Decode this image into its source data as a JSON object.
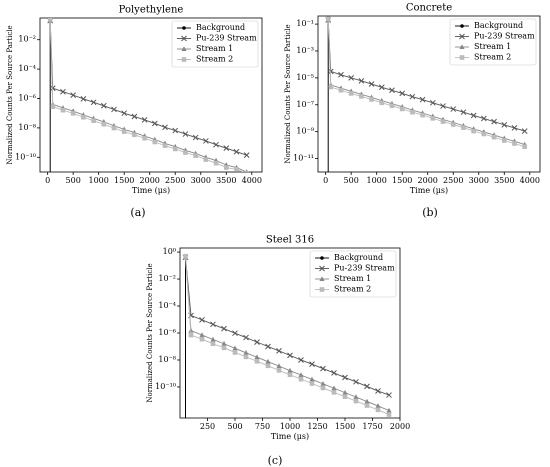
{
  "chart_data": [
    {
      "type": "line",
      "title": "Polyethylene",
      "xlabel": "Time (μs)",
      "ylabel": "Normalized Counts Per Source Particle",
      "log_y": true,
      "legend": "upper right",
      "x": [
        50,
        100,
        300,
        500,
        700,
        900,
        1100,
        1300,
        1500,
        1700,
        1900,
        2100,
        2300,
        2500,
        2700,
        2900,
        3100,
        3300,
        3500,
        3700,
        3900
      ],
      "xlim": [
        -150,
        4200
      ],
      "xticks": [
        0,
        500,
        1000,
        1500,
        2000,
        2500,
        3000,
        3500,
        4000
      ],
      "ylim": [
        1e-11,
        0.3
      ],
      "yticks": [
        {
          "value": 1e-10,
          "label": "10⁻¹⁰"
        },
        {
          "value": 1e-08,
          "label": "10⁻⁸"
        },
        {
          "value": 1e-06,
          "label": "10⁻⁶"
        },
        {
          "value": 0.0001,
          "label": "10⁻⁴"
        },
        {
          "value": 0.01,
          "label": "10⁻²"
        }
      ],
      "series": [
        {
          "name": "Background",
          "color": "#000000",
          "marker": "dot",
          "values": [
            0.2,
            null,
            null,
            null,
            null,
            null,
            null,
            null,
            null,
            null,
            null,
            null,
            null,
            null,
            null,
            null,
            null,
            null,
            null,
            null,
            null
          ]
        },
        {
          "name": "Pu-239 Stream",
          "color": "#555555",
          "marker": "x",
          "values": [
            0.2,
            5e-06,
            2.9e-06,
            1.7e-06,
            9.5e-07,
            5.5e-07,
            3.2e-07,
            1.8e-07,
            1e-07,
            6e-08,
            3.5e-08,
            2e-08,
            1.1e-08,
            6.6e-09,
            3.8e-09,
            2.2e-09,
            1.3e-09,
            7.2e-10,
            4.2e-10,
            2.4e-10,
            1.4e-10
          ]
        },
        {
          "name": "Stream 1",
          "color": "#888888",
          "marker": "triangle",
          "values": [
            0.2,
            4e-07,
            2.3e-07,
            1.4e-07,
            7.6e-08,
            4.4e-08,
            2.6e-08,
            1.4e-08,
            8e-09,
            4.8e-09,
            2.8e-09,
            1.6e-09,
            8.8e-10,
            5.3e-10,
            3e-10,
            1.8e-10,
            1e-10,
            6e-11,
            3e-11,
            2e-11,
            1e-11
          ]
        },
        {
          "name": "Stream 2",
          "color": "#bbbbbb",
          "marker": "square",
          "values": [
            0.25,
            2.8e-07,
            1.6e-07,
            9.8e-08,
            5.3e-08,
            3.1e-08,
            1.8e-08,
            9.8e-09,
            5.6e-09,
            3.4e-09,
            2e-09,
            1.1e-09,
            6.2e-10,
            3.7e-10,
            2.1e-10,
            1.3e-10,
            7e-11,
            4e-11,
            2e-11,
            1.5e-11,
            8e-12
          ]
        }
      ]
    },
    {
      "type": "line",
      "title": "Concrete",
      "xlabel": "Time (μs)",
      "ylabel": "Normalized Counts Per Source Particle",
      "log_y": true,
      "legend": "upper right",
      "x": [
        50,
        100,
        300,
        500,
        700,
        900,
        1100,
        1300,
        1500,
        1700,
        1900,
        2100,
        2300,
        2500,
        2700,
        2900,
        3100,
        3300,
        3500,
        3700,
        3900
      ],
      "xlim": [
        -150,
        4200
      ],
      "xticks": [
        0,
        500,
        1000,
        1500,
        2000,
        2500,
        3000,
        3500,
        4000
      ],
      "ylim": [
        1e-12,
        0.4
      ],
      "yticks": [
        {
          "value": 1e-11,
          "label": "10⁻¹¹"
        },
        {
          "value": 1e-09,
          "label": "10⁻⁹"
        },
        {
          "value": 1e-07,
          "label": "10⁻⁷"
        },
        {
          "value": 1e-05,
          "label": "10⁻⁵"
        },
        {
          "value": 0.001,
          "label": "10⁻³"
        },
        {
          "value": 0.1,
          "label": "10⁻¹"
        }
      ],
      "series": [
        {
          "name": "Background",
          "color": "#000000",
          "marker": "dot",
          "values": [
            0.2,
            null,
            null,
            null,
            null,
            null,
            null,
            null,
            null,
            null,
            null,
            null,
            null,
            null,
            null,
            null,
            null,
            null,
            null,
            null,
            null
          ]
        },
        {
          "name": "Pu-239 Stream",
          "color": "#555555",
          "marker": "x",
          "values": [
            0.2,
            3e-05,
            1.7e-05,
            1e-05,
            6e-06,
            3.5e-06,
            2e-06,
            1.2e-06,
            7e-07,
            4e-07,
            2.4e-07,
            1.4e-07,
            8e-08,
            4.8e-08,
            2.8e-08,
            1.6e-08,
            9.5e-09,
            5.6e-09,
            3.2e-09,
            1.9e-09,
            1.1e-09
          ]
        },
        {
          "name": "Stream 1",
          "color": "#888888",
          "marker": "triangle",
          "values": [
            0.2,
            3e-06,
            1.7e-06,
            1e-06,
            6e-07,
            3.5e-07,
            2e-07,
            1.2e-07,
            7e-08,
            4e-08,
            2.4e-08,
            1.4e-08,
            8e-09,
            4.8e-09,
            2.8e-09,
            1.6e-09,
            9.5e-10,
            5.6e-10,
            3.2e-10,
            1.9e-10,
            1.1e-10
          ]
        },
        {
          "name": "Stream 2",
          "color": "#bbbbbb",
          "marker": "square",
          "values": [
            0.25,
            2.1e-06,
            1.2e-06,
            7e-07,
            4.2e-07,
            2.5e-07,
            1.4e-07,
            8.4e-08,
            4.9e-08,
            2.8e-08,
            1.7e-08,
            9.8e-09,
            5.6e-09,
            3.4e-09,
            2e-09,
            1.1e-09,
            6.7e-10,
            3.9e-10,
            2.2e-10,
            1.3e-10,
            7.7e-11
          ]
        }
      ]
    },
    {
      "type": "line",
      "title": "Steel 316",
      "xlabel": "Time (μs)",
      "ylabel": "Normalized Counts Per Source Particle",
      "log_y": true,
      "legend": "upper right",
      "x": [
        50,
        100,
        200,
        300,
        400,
        500,
        600,
        700,
        800,
        900,
        1000,
        1100,
        1200,
        1300,
        1400,
        1500,
        1600,
        1700,
        1800,
        1900
      ],
      "xlim": [
        0,
        2000
      ],
      "xticks": [
        250,
        500,
        750,
        1000,
        1250,
        1500,
        1750,
        2000
      ],
      "ylim": [
        5e-13,
        2
      ],
      "yticks": [
        {
          "value": 1e-10,
          "label": "10⁻¹⁰"
        },
        {
          "value": 1e-08,
          "label": "10⁻⁸"
        },
        {
          "value": 1e-06,
          "label": "10⁻⁶"
        },
        {
          "value": 0.0001,
          "label": "10⁻⁴"
        },
        {
          "value": 0.01,
          "label": "10⁻²"
        },
        {
          "value": 1,
          "label": "10⁰"
        }
      ],
      "series": [
        {
          "name": "Background",
          "color": "#000000",
          "marker": "dot",
          "values": [
            0.4,
            null,
            null,
            null,
            null,
            null,
            null,
            null,
            null,
            null,
            null,
            null,
            null,
            null,
            null,
            null,
            null,
            null,
            null,
            null
          ]
        },
        {
          "name": "Pu-239 Stream",
          "color": "#555555",
          "marker": "x",
          "values": [
            0.4,
            2e-05,
            9.4e-06,
            4.4e-06,
            2.1e-06,
            9.7e-07,
            4.6e-07,
            2.1e-07,
            1e-07,
            4.7e-08,
            2.2e-08,
            1e-08,
            4.9e-09,
            2.3e-09,
            1.1e-09,
            5e-10,
            2.4e-10,
            1.1e-10,
            5e-11,
            2.5e-11
          ]
        },
        {
          "name": "Stream 1",
          "color": "#888888",
          "marker": "triangle",
          "values": [
            0.4,
            1.5e-06,
            7e-07,
            3.3e-07,
            1.6e-07,
            7.3e-08,
            3.4e-08,
            1.6e-08,
            7.5e-09,
            3.5e-09,
            1.6e-09,
            7.7e-10,
            3.6e-10,
            1.7e-10,
            8e-11,
            3.8e-11,
            1.8e-11,
            8.3e-12,
            3.9e-12,
            1.8e-12
          ]
        },
        {
          "name": "Stream 2",
          "color": "#bbbbbb",
          "marker": "square",
          "values": [
            0.5,
            7e-07,
            3.5e-07,
            1.6e-07,
            8e-08,
            3.6e-08,
            1.7e-08,
            8e-09,
            3.7e-09,
            1.7e-09,
            8e-10,
            3.8e-10,
            1.8e-10,
            8.5e-11,
            4e-11,
            1.9e-11,
            9e-12,
            4.2e-12,
            2e-12,
            9e-13
          ]
        }
      ]
    }
  ],
  "captions": [
    "(a)",
    "(b)",
    "(c)"
  ]
}
